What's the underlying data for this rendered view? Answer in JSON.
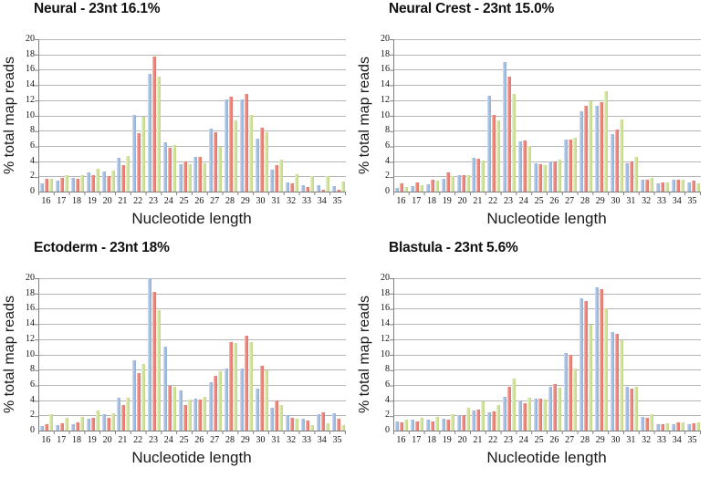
{
  "page": {
    "background": "#ffffff",
    "grid_color": "#b5b5b5",
    "axis_color": "#7f7f7f"
  },
  "chart_data": [
    {
      "type": "bar",
      "title": "Neural - 23nt 16.1%",
      "xlabel": "Nucleotide length",
      "ylabel": "% total map reads",
      "ylim": [
        0,
        20
      ],
      "ytick_step": 2,
      "grid": "horizontal",
      "legend_position": "none",
      "categories": [
        16,
        17,
        18,
        19,
        20,
        21,
        22,
        23,
        24,
        25,
        26,
        27,
        28,
        29,
        30,
        31,
        32,
        33,
        34,
        35
      ],
      "series": [
        {
          "name": "blue",
          "color": "#A4BFE4",
          "values": [
            1.1,
            1.4,
            1.8,
            2.5,
            2.6,
            4.4,
            10.1,
            15.4,
            6.5,
            3.6,
            4.5,
            8.3,
            12.1,
            12.1,
            7.0,
            2.9,
            1.2,
            0.9,
            0.8,
            0.7
          ]
        },
        {
          "name": "red",
          "color": "#EF8278",
          "values": [
            1.7,
            1.8,
            1.7,
            2.2,
            2.0,
            3.5,
            7.7,
            17.7,
            5.8,
            4.0,
            4.6,
            7.8,
            12.5,
            12.8,
            8.4,
            3.5,
            1.1,
            0.6,
            0.3,
            0.3
          ]
        },
        {
          "name": "green",
          "color": "#D2E59A",
          "values": [
            1.7,
            2.1,
            2.1,
            3.0,
            2.7,
            4.7,
            9.8,
            15.1,
            6.1,
            3.6,
            3.7,
            5.9,
            9.4,
            10.1,
            7.8,
            4.2,
            2.3,
            2.0,
            2.0,
            1.3
          ]
        }
      ]
    },
    {
      "type": "bar",
      "title": "Neural Crest - 23nt 15.0%",
      "xlabel": "Nucleotide length",
      "ylabel": "% total map reads",
      "ylim": [
        0,
        20
      ],
      "ytick_step": 2,
      "grid": "horizontal",
      "legend_position": "none",
      "categories": [
        16,
        17,
        18,
        19,
        20,
        21,
        22,
        23,
        24,
        25,
        26,
        27,
        28,
        29,
        30,
        31,
        32,
        33,
        34,
        35
      ],
      "series": [
        {
          "name": "blue",
          "color": "#A4BFE4",
          "values": [
            0.5,
            0.7,
            1.0,
            1.7,
            2.1,
            4.4,
            12.6,
            17.0,
            6.6,
            3.7,
            4.0,
            6.8,
            10.6,
            11.3,
            7.6,
            3.7,
            1.6,
            1.1,
            1.5,
            1.2
          ]
        },
        {
          "name": "red",
          "color": "#EF8278",
          "values": [
            1.1,
            1.2,
            1.5,
            2.5,
            2.2,
            4.3,
            10.1,
            15.1,
            6.7,
            3.6,
            4.0,
            6.8,
            11.2,
            11.7,
            8.2,
            4.0,
            1.6,
            1.2,
            1.6,
            1.4
          ]
        },
        {
          "name": "green",
          "color": "#D2E59A",
          "values": [
            0.6,
            0.9,
            1.4,
            2.0,
            2.1,
            4.1,
            9.3,
            12.8,
            6.0,
            3.5,
            4.2,
            7.1,
            11.9,
            13.2,
            9.5,
            4.6,
            1.8,
            1.2,
            1.6,
            1.1
          ]
        }
      ]
    },
    {
      "type": "bar",
      "title": "Ectoderm - 23nt 18%",
      "xlabel": "Nucleotide length",
      "ylabel": "% total map reads",
      "ylim": [
        0,
        20
      ],
      "ytick_step": 2,
      "grid": "horizontal",
      "legend_position": "none",
      "categories": [
        16,
        17,
        18,
        19,
        20,
        21,
        22,
        23,
        24,
        25,
        26,
        27,
        28,
        29,
        30,
        31,
        32,
        33,
        34,
        35
      ],
      "series": [
        {
          "name": "blue",
          "color": "#A4BFE4",
          "values": [
            0.6,
            0.7,
            0.9,
            1.6,
            2.1,
            4.3,
            9.2,
            20.3,
            11.0,
            5.3,
            4.2,
            6.4,
            8.2,
            8.2,
            5.5,
            3.0,
            2.0,
            1.6,
            2.2,
            2.3
          ]
        },
        {
          "name": "red",
          "color": "#EF8278",
          "values": [
            0.9,
            1.0,
            1.1,
            1.7,
            1.7,
            3.4,
            7.6,
            18.2,
            5.9,
            3.4,
            4.1,
            7.2,
            11.6,
            12.5,
            8.5,
            4.0,
            1.7,
            1.3,
            2.4,
            1.5
          ]
        },
        {
          "name": "green",
          "color": "#D2E59A",
          "values": [
            2.1,
            1.7,
            1.8,
            2.6,
            2.3,
            4.3,
            8.8,
            15.8,
            5.7,
            4.1,
            4.4,
            7.8,
            11.5,
            11.6,
            7.9,
            3.3,
            1.5,
            0.7,
            1.0,
            0.7
          ]
        }
      ]
    },
    {
      "type": "bar",
      "title": "Blastula - 23nt 5.6%",
      "xlabel": "Nucleotide length",
      "ylabel": "% total map reads",
      "ylim": [
        0,
        20
      ],
      "ytick_step": 2,
      "grid": "horizontal",
      "legend_position": "none",
      "categories": [
        16,
        17,
        18,
        19,
        20,
        21,
        22,
        23,
        24,
        25,
        26,
        27,
        28,
        29,
        30,
        31,
        32,
        33,
        34,
        35
      ],
      "series": [
        {
          "name": "blue",
          "color": "#A4BFE4",
          "values": [
            1.2,
            1.4,
            1.4,
            1.5,
            2.0,
            2.6,
            2.4,
            4.4,
            3.9,
            4.2,
            5.7,
            10.2,
            17.4,
            18.8,
            12.9,
            5.7,
            1.8,
            0.8,
            0.8,
            0.8
          ]
        },
        {
          "name": "red",
          "color": "#EF8278",
          "values": [
            1.1,
            1.2,
            1.2,
            1.4,
            2.0,
            2.7,
            2.5,
            5.7,
            3.6,
            4.2,
            6.1,
            10.0,
            17.0,
            18.6,
            12.7,
            5.5,
            1.7,
            0.9,
            1.1,
            1.0
          ]
        },
        {
          "name": "green",
          "color": "#D2E59A",
          "values": [
            1.4,
            1.7,
            1.8,
            2.1,
            3.0,
            3.8,
            3.4,
            6.8,
            4.3,
            4.1,
            5.6,
            8.1,
            13.9,
            16.0,
            11.8,
            5.8,
            2.1,
            1.0,
            1.1,
            1.1
          ]
        }
      ]
    }
  ]
}
